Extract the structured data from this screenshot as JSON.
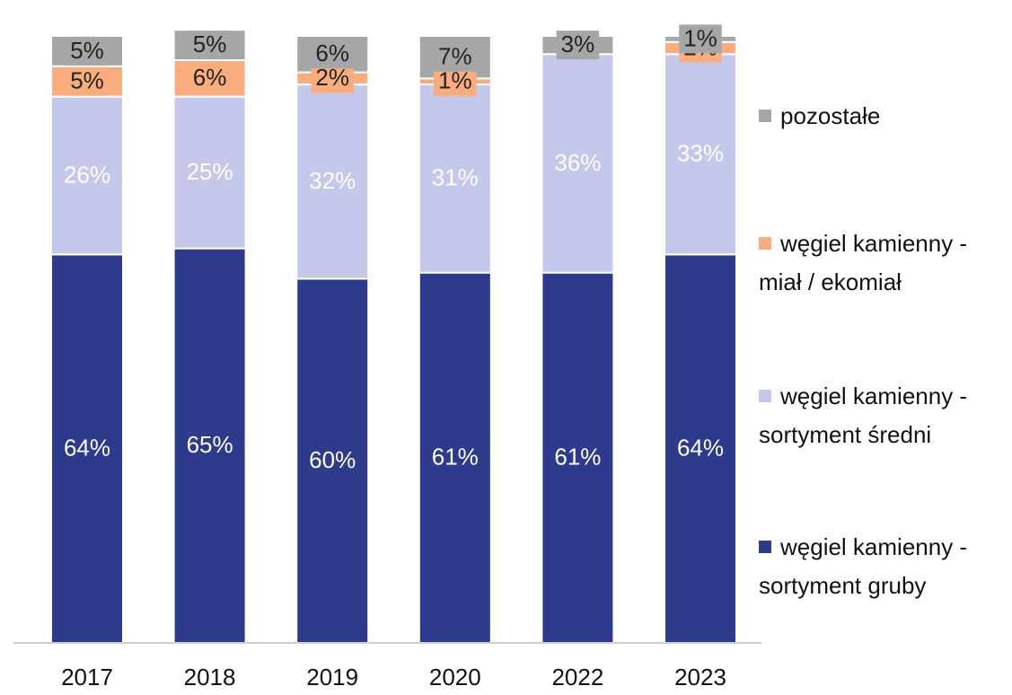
{
  "chart_data": {
    "type": "stacked_bar",
    "categories": [
      "2017",
      "2018",
      "2019",
      "2020",
      "2022",
      "2023"
    ],
    "series": [
      {
        "name": "węgiel kamienny - sortyment gruby",
        "color": "#2e3a8c",
        "values": [
          64,
          65,
          60,
          61,
          61,
          64
        ],
        "value_labels": [
          "64%",
          "65%",
          "60%",
          "61%",
          "61%",
          "64%"
        ]
      },
      {
        "name": "węgiel kamienny - sortyment średni",
        "color": "#c5c8ea",
        "values": [
          26,
          25,
          32,
          31,
          36,
          33
        ],
        "value_labels": [
          "26%",
          "25%",
          "32%",
          "31%",
          "36%",
          "33%"
        ]
      },
      {
        "name": "węgiel kamienny - miał / ekomiał",
        "color": "#f9ad7e",
        "values": [
          5,
          6,
          2,
          1,
          null,
          2
        ],
        "value_labels": [
          "5%",
          "6%",
          "2%",
          "1%",
          null,
          "2%"
        ]
      },
      {
        "name": "pozostałe",
        "color": "#a6a6a6",
        "values": [
          5,
          5,
          6,
          7,
          3,
          1
        ],
        "value_labels": [
          "5%",
          "5%",
          "6%",
          "7%",
          "3%",
          "1%"
        ]
      }
    ],
    "ylim": [
      0,
      100
    ]
  }
}
